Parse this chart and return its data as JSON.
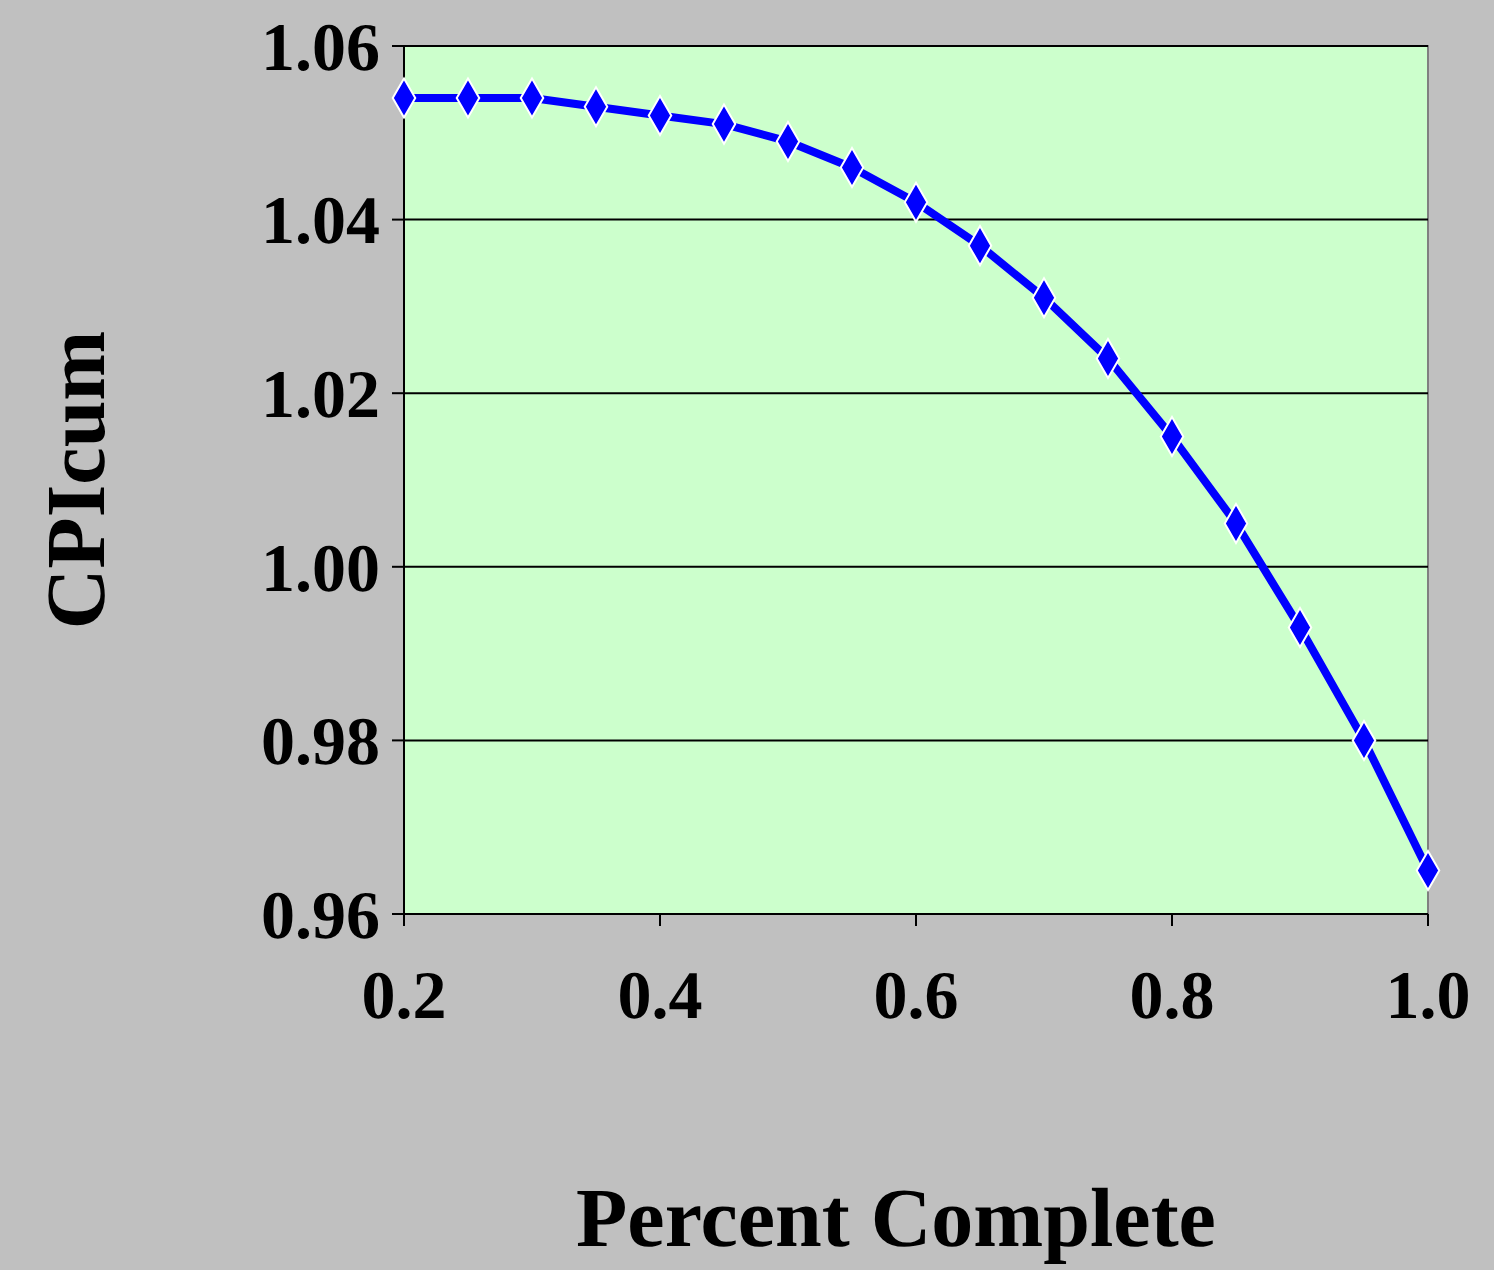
{
  "chart_data": {
    "type": "line",
    "xlabel": "Percent Complete",
    "ylabel": "CPIcum",
    "x": [
      0.2,
      0.25,
      0.3,
      0.35,
      0.4,
      0.45,
      0.5,
      0.55,
      0.6,
      0.65,
      0.7,
      0.75,
      0.8,
      0.85,
      0.9,
      0.95,
      1.0
    ],
    "series": [
      {
        "color": "#0000ff",
        "values": [
          1.054,
          1.054,
          1.054,
          1.053,
          1.052,
          1.051,
          1.049,
          1.046,
          1.042,
          1.037,
          1.031,
          1.024,
          1.015,
          1.005,
          0.993,
          0.98,
          0.965
        ]
      }
    ],
    "xlim": [
      0.2,
      1.0
    ],
    "xticks": [
      {
        "value": 0.2,
        "label": "0.2"
      },
      {
        "value": 0.4,
        "label": "0.4"
      },
      {
        "value": 0.6,
        "label": "0.6"
      },
      {
        "value": 0.8,
        "label": "0.8"
      },
      {
        "value": 1.0,
        "label": "1.0"
      }
    ],
    "ylim": [
      0.96,
      1.06
    ],
    "yticks": [
      {
        "value": 0.96,
        "label": "0.96"
      },
      {
        "value": 0.98,
        "label": "0.98"
      },
      {
        "value": 1.0,
        "label": "1.00"
      },
      {
        "value": 1.02,
        "label": "1.02"
      },
      {
        "value": 1.04,
        "label": "1.04"
      },
      {
        "value": 1.06,
        "label": "1.06"
      }
    ],
    "grid": "y",
    "marker": "diamond",
    "line_style": "solid"
  }
}
